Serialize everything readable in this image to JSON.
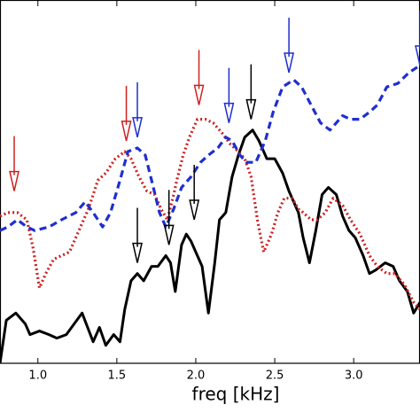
{
  "chart_data": {
    "type": "line",
    "x_label": "freq [kHz]",
    "xlim": [
      0.76,
      3.42
    ],
    "ylim": [
      0,
      100
    ],
    "xticks": [
      {
        "value": 1,
        "label": "1.0"
      },
      {
        "value": 1.5,
        "label": "1.5"
      },
      {
        "value": 2,
        "label": "2.0"
      },
      {
        "value": 2.5,
        "label": "2.5"
      },
      {
        "value": 3,
        "label": "3.0"
      }
    ],
    "series": [
      {
        "color": "#000000",
        "style": "solid",
        "x": [
          0.76,
          0.8,
          0.86,
          0.92,
          0.95,
          1.01,
          1.07,
          1.12,
          1.18,
          1.28,
          1.35,
          1.39,
          1.43,
          1.48,
          1.52,
          1.55,
          1.59,
          1.63,
          1.67,
          1.72,
          1.76,
          1.81,
          1.84,
          1.87,
          1.91,
          1.94,
          1.97,
          2.01,
          2.04,
          2.08,
          2.12,
          2.15,
          2.19,
          2.23,
          2.27,
          2.31,
          2.36,
          2.4,
          2.45,
          2.5,
          2.55,
          2.59,
          2.65,
          2.68,
          2.72,
          2.76,
          2.8,
          2.84,
          2.89,
          2.93,
          2.97,
          3.01,
          3.06,
          3.1,
          3.14,
          3.2,
          3.25,
          3.29,
          3.34,
          3.38,
          3.42
        ],
        "values": [
          0,
          12,
          14,
          11,
          8,
          9,
          8,
          7,
          8,
          14,
          6,
          10,
          5,
          8,
          6,
          15,
          23,
          25,
          23,
          27,
          27,
          30,
          28,
          20,
          33,
          36,
          34,
          30,
          27,
          14,
          28,
          40,
          42,
          52,
          58,
          63,
          65,
          62,
          57,
          57,
          53,
          48,
          42,
          35,
          28,
          37,
          47,
          49,
          47,
          41,
          37,
          35,
          30,
          25,
          26,
          28,
          27,
          23,
          20,
          14,
          17
        ]
      },
      {
        "color": "#cc2222",
        "style": "dotted",
        "x": [
          0.76,
          0.81,
          0.87,
          0.93,
          0.97,
          1.01,
          1.05,
          1.1,
          1.15,
          1.2,
          1.26,
          1.32,
          1.38,
          1.43,
          1.49,
          1.55,
          1.59,
          1.64,
          1.69,
          1.74,
          1.78,
          1.82,
          1.86,
          1.88,
          1.92,
          1.96,
          2.01,
          2.06,
          2.11,
          2.17,
          2.22,
          2.27,
          2.31,
          2.35,
          2.39,
          2.43,
          2.48,
          2.52,
          2.56,
          2.61,
          2.65,
          2.68,
          2.73,
          2.77,
          2.82,
          2.87,
          2.93,
          2.98,
          3.04,
          3.1,
          3.15,
          3.21,
          3.26,
          3.32,
          3.38,
          3.42
        ],
        "values": [
          41,
          42,
          42,
          40,
          32,
          21,
          25,
          29,
          30,
          31,
          37,
          43,
          51,
          53,
          57,
          59,
          57,
          52,
          48,
          47,
          43,
          40,
          47,
          51,
          58,
          63,
          68,
          68,
          67,
          64,
          61,
          59,
          57,
          52,
          40,
          31,
          36,
          42,
          46,
          46,
          43,
          42,
          40,
          40,
          42,
          46,
          44,
          40,
          36,
          30,
          27,
          25,
          25,
          22,
          17,
          15
        ]
      },
      {
        "color": "#1f2fd0",
        "style": "dashed",
        "x": [
          0.76,
          0.81,
          0.87,
          0.93,
          0.98,
          1.07,
          1.15,
          1.24,
          1.3,
          1.35,
          1.41,
          1.46,
          1.52,
          1.57,
          1.63,
          1.68,
          1.72,
          1.77,
          1.81,
          1.86,
          1.91,
          1.97,
          2.03,
          2.08,
          2.14,
          2.19,
          2.23,
          2.28,
          2.32,
          2.38,
          2.44,
          2.49,
          2.55,
          2.62,
          2.67,
          2.73,
          2.79,
          2.85,
          2.93,
          2.98,
          3.04,
          3.1,
          3.15,
          3.21,
          3.28,
          3.35,
          3.42
        ],
        "values": [
          37,
          38,
          40,
          38,
          37,
          38,
          40,
          42,
          45,
          42,
          38,
          42,
          51,
          59,
          60,
          58,
          51,
          42,
          38,
          43,
          49,
          52,
          56,
          58,
          60,
          63,
          62,
          58,
          56,
          56,
          62,
          70,
          77,
          79,
          77,
          72,
          67,
          65,
          69,
          68,
          68,
          70,
          72,
          77,
          78,
          81,
          83
        ]
      }
    ],
    "arrows": [
      {
        "x": 0.85,
        "y": 48,
        "color": "#cc2222"
      },
      {
        "x": 1.56,
        "y": 62,
        "color": "#cc2222"
      },
      {
        "x": 2.02,
        "y": 72,
        "color": "#cc2222"
      },
      {
        "x": 1.63,
        "y": 63,
        "color": "#1f2fd0"
      },
      {
        "x": 2.21,
        "y": 67,
        "color": "#1f2fd0"
      },
      {
        "x": 2.59,
        "y": 81,
        "color": "#1f2fd0"
      },
      {
        "x": 3.42,
        "y": 83,
        "color": "#1f2fd0"
      },
      {
        "x": 1.63,
        "y": 28,
        "color": "#000000"
      },
      {
        "x": 1.83,
        "y": 33,
        "color": "#000000"
      },
      {
        "x": 1.99,
        "y": 40,
        "color": "#000000"
      },
      {
        "x": 2.35,
        "y": 68,
        "color": "#000000"
      }
    ]
  }
}
